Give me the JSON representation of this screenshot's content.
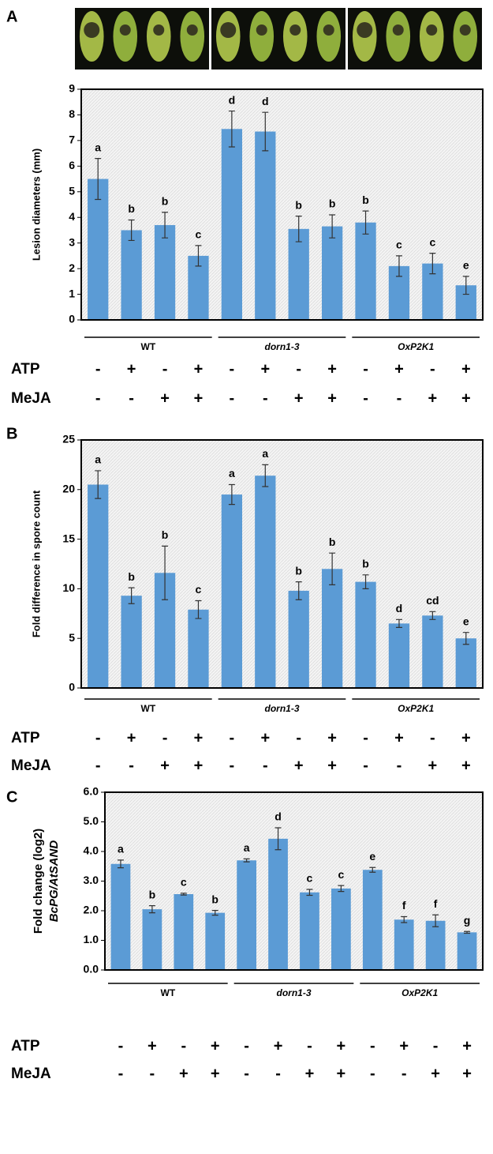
{
  "chart_data": [
    {
      "type": "bar",
      "panel": "A",
      "ylabel": [
        "Lesion diameters (mm)"
      ],
      "categories": [
        null,
        null,
        null,
        null,
        null,
        null,
        null,
        null,
        null,
        null,
        null,
        null
      ],
      "values": [
        5.5,
        3.5,
        3.7,
        2.5,
        7.45,
        7.35,
        3.55,
        3.65,
        3.8,
        2.1,
        2.2,
        1.35
      ],
      "errors": [
        0.8,
        0.4,
        0.5,
        0.4,
        0.7,
        0.75,
        0.5,
        0.45,
        0.45,
        0.4,
        0.4,
        0.35
      ],
      "letters": [
        "a",
        "b",
        "b",
        "c",
        "d",
        "d",
        "b",
        "b",
        "b",
        "c",
        "c",
        "e"
      ],
      "color": "#5b9bd5",
      "ylim": [
        0,
        9
      ],
      "yticks": [
        0,
        1,
        2,
        3,
        4,
        5,
        6,
        7,
        8,
        9
      ],
      "groups": [
        "WT",
        "dorn1-3",
        "OxP2K1"
      ],
      "treatments": [
        {
          "name": "ATP",
          "signs": [
            "-",
            "+",
            "-",
            "+",
            "-",
            "+",
            "-",
            "+",
            "-",
            "+",
            "-",
            "+"
          ]
        },
        {
          "name": "MeJA",
          "signs": [
            "-",
            "-",
            "+",
            "+",
            "-",
            "-",
            "+",
            "+",
            "-",
            "-",
            "+",
            "+"
          ]
        }
      ]
    },
    {
      "type": "bar",
      "panel": "B",
      "ylabel": [
        "Fold difference in spore count"
      ],
      "categories": [
        null,
        null,
        null,
        null,
        null,
        null,
        null,
        null,
        null,
        null,
        null,
        null
      ],
      "values": [
        20.5,
        9.3,
        11.6,
        7.9,
        19.5,
        21.4,
        9.8,
        12.0,
        10.7,
        6.5,
        7.3,
        5.0
      ],
      "errors": [
        1.4,
        0.8,
        2.7,
        0.9,
        1.0,
        1.1,
        0.9,
        1.6,
        0.7,
        0.4,
        0.4,
        0.6
      ],
      "letters": [
        "a",
        "b",
        "b",
        "c",
        "a",
        "a",
        "b",
        "b",
        "b",
        "d",
        "cd",
        "e"
      ],
      "color": "#5b9bd5",
      "ylim": [
        0,
        25
      ],
      "yticks": [
        0,
        5,
        10,
        15,
        20,
        25
      ],
      "groups": [
        "WT",
        "dorn1-3",
        "OxP2K1"
      ],
      "treatments": [
        {
          "name": "ATP",
          "signs": [
            "-",
            "+",
            "-",
            "+",
            "-",
            "+",
            "-",
            "+",
            "-",
            "+",
            "-",
            "+"
          ]
        },
        {
          "name": "MeJA",
          "signs": [
            "-",
            "-",
            "+",
            "+",
            "-",
            "-",
            "+",
            "+",
            "-",
            "-",
            "+",
            "+"
          ]
        }
      ]
    },
    {
      "type": "bar",
      "panel": "C",
      "ylabel": [
        "Fold change (log2)",
        "BcPG/AtSAND"
      ],
      "categories": [
        null,
        null,
        null,
        null,
        null,
        null,
        null,
        null,
        null,
        null,
        null,
        null
      ],
      "values": [
        3.58,
        2.05,
        2.56,
        1.93,
        3.7,
        4.43,
        2.62,
        2.75,
        3.38,
        1.7,
        1.66,
        1.27
      ],
      "errors": [
        0.13,
        0.12,
        0.03,
        0.08,
        0.05,
        0.37,
        0.1,
        0.1,
        0.08,
        0.1,
        0.2,
        0.03
      ],
      "letters": [
        "a",
        "b",
        "c",
        "b",
        "a",
        "d",
        "c",
        "c",
        "e",
        "f",
        "f",
        "g"
      ],
      "color": "#5b9bd5",
      "ylim": [
        0,
        6
      ],
      "yticks": [
        {
          "value": 0,
          "label": "0.0"
        },
        {
          "value": 1,
          "label": "1.0"
        },
        {
          "value": 2,
          "label": "2.0"
        },
        {
          "value": 3,
          "label": "3.0"
        },
        {
          "value": 4,
          "label": "4.0"
        },
        {
          "value": 5,
          "label": "5.0"
        },
        {
          "value": 6,
          "label": "6.0"
        }
      ],
      "groups": [
        "WT",
        "dorn1-3",
        "OxP2K1"
      ],
      "treatments": [
        {
          "name": "ATP",
          "signs": [
            "-",
            "+",
            "-",
            "+",
            "-",
            "+",
            "-",
            "+",
            "-",
            "+",
            "-",
            "+"
          ]
        },
        {
          "name": "MeJA",
          "signs": [
            "-",
            "-",
            "+",
            "+",
            "-",
            "-",
            "+",
            "+",
            "-",
            "-",
            "+",
            "+"
          ]
        }
      ]
    }
  ]
}
